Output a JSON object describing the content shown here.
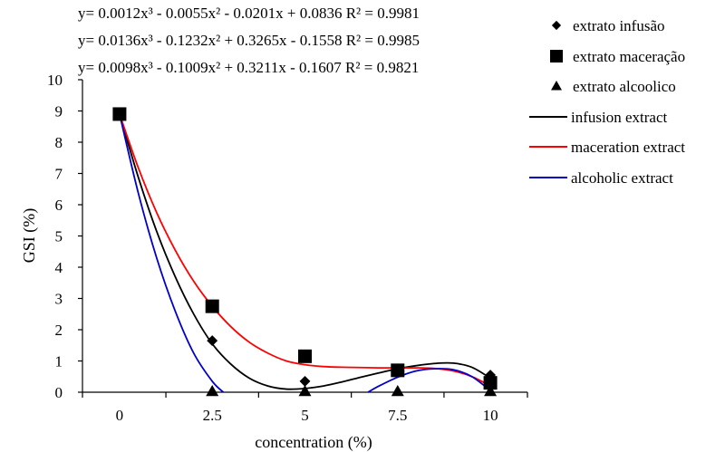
{
  "chart_data": {
    "type": "scatter",
    "xlabel": "concentration (%)",
    "ylabel": "GSI (%)",
    "x_ticks": [
      "0",
      "2.5",
      "5",
      "7.5",
      "10"
    ],
    "y_ticks": [
      "0",
      "1",
      "2",
      "3",
      "4",
      "5",
      "6",
      "7",
      "8",
      "9",
      "10"
    ],
    "xlim": [
      -1,
      11
    ],
    "ylim": [
      0,
      10
    ],
    "equations": [
      "y= 0.0012x³ - 0.0055x² - 0.0201x + 0.0836 R² = 0.9981",
      "y= 0.0136x³ - 0.1232x² + 0.3265x - 0.1558 R² = 0.9985",
      "y= 0.0098x³ - 0.1009x² + 0.3211x - 0.1607 R² = 0.9821"
    ],
    "scatter_series": [
      {
        "name": "extrato infusão",
        "marker": "diamond",
        "color": "#000000",
        "points": [
          [
            0,
            8.9
          ],
          [
            2.5,
            1.65
          ],
          [
            5,
            0.35
          ],
          [
            7.5,
            0.7
          ],
          [
            10,
            0.55
          ]
        ]
      },
      {
        "name": "extrato maceração",
        "marker": "square",
        "color": "#000000",
        "points": [
          [
            0,
            8.9
          ],
          [
            2.5,
            2.75
          ],
          [
            5,
            1.15
          ],
          [
            7.5,
            0.7
          ],
          [
            10,
            0.3
          ]
        ]
      },
      {
        "name": "extrato alcoolico",
        "marker": "triangle",
        "color": "#000000",
        "points": [
          [
            0,
            8.9
          ],
          [
            2.5,
            0
          ],
          [
            5,
            0
          ],
          [
            7.5,
            0
          ],
          [
            10,
            0
          ]
        ]
      }
    ],
    "trend_series": [
      {
        "name": "infusion extract",
        "color": "#000000",
        "points": [
          [
            0,
            8.9
          ],
          [
            0.5,
            6.9
          ],
          [
            1,
            5.15
          ],
          [
            1.5,
            3.7
          ],
          [
            2,
            2.5
          ],
          [
            2.5,
            1.55
          ],
          [
            3,
            0.9
          ],
          [
            3.5,
            0.45
          ],
          [
            4,
            0.2
          ],
          [
            4.5,
            0.1
          ],
          [
            5,
            0.12
          ],
          [
            5.5,
            0.2
          ],
          [
            6,
            0.33
          ],
          [
            6.5,
            0.48
          ],
          [
            7,
            0.62
          ],
          [
            7.5,
            0.75
          ],
          [
            8,
            0.85
          ],
          [
            8.5,
            0.92
          ],
          [
            9,
            0.93
          ],
          [
            9.5,
            0.8
          ],
          [
            10,
            0.45
          ]
        ]
      },
      {
        "name": "maceration extract",
        "color": "#ff0000",
        "points": [
          [
            0,
            8.9
          ],
          [
            0.5,
            7.2
          ],
          [
            1,
            5.75
          ],
          [
            1.5,
            4.55
          ],
          [
            2,
            3.55
          ],
          [
            2.5,
            2.75
          ],
          [
            3,
            2.1
          ],
          [
            3.5,
            1.6
          ],
          [
            4,
            1.25
          ],
          [
            4.5,
            1.0
          ],
          [
            5,
            0.88
          ],
          [
            5.5,
            0.82
          ],
          [
            6,
            0.8
          ],
          [
            6.5,
            0.79
          ],
          [
            7,
            0.78
          ],
          [
            7.5,
            0.78
          ],
          [
            8,
            0.78
          ],
          [
            8.5,
            0.76
          ],
          [
            9,
            0.68
          ],
          [
            9.5,
            0.5
          ],
          [
            10,
            0.2
          ]
        ]
      },
      {
        "name": "alcoholic extract",
        "color": "#0000cc",
        "points": [
          [
            0,
            8.9
          ],
          [
            0.5,
            6.4
          ],
          [
            1,
            4.3
          ],
          [
            1.5,
            2.6
          ],
          [
            2,
            1.25
          ],
          [
            2.5,
            0.35
          ],
          [
            2.8,
            0
          ]
        ],
        "points2": [
          [
            6.7,
            0
          ],
          [
            7,
            0.2
          ],
          [
            7.5,
            0.48
          ],
          [
            8,
            0.68
          ],
          [
            8.5,
            0.75
          ],
          [
            9,
            0.72
          ],
          [
            9.5,
            0.5
          ],
          [
            10,
            0.05
          ]
        ]
      }
    ],
    "legend_placement": "right"
  }
}
